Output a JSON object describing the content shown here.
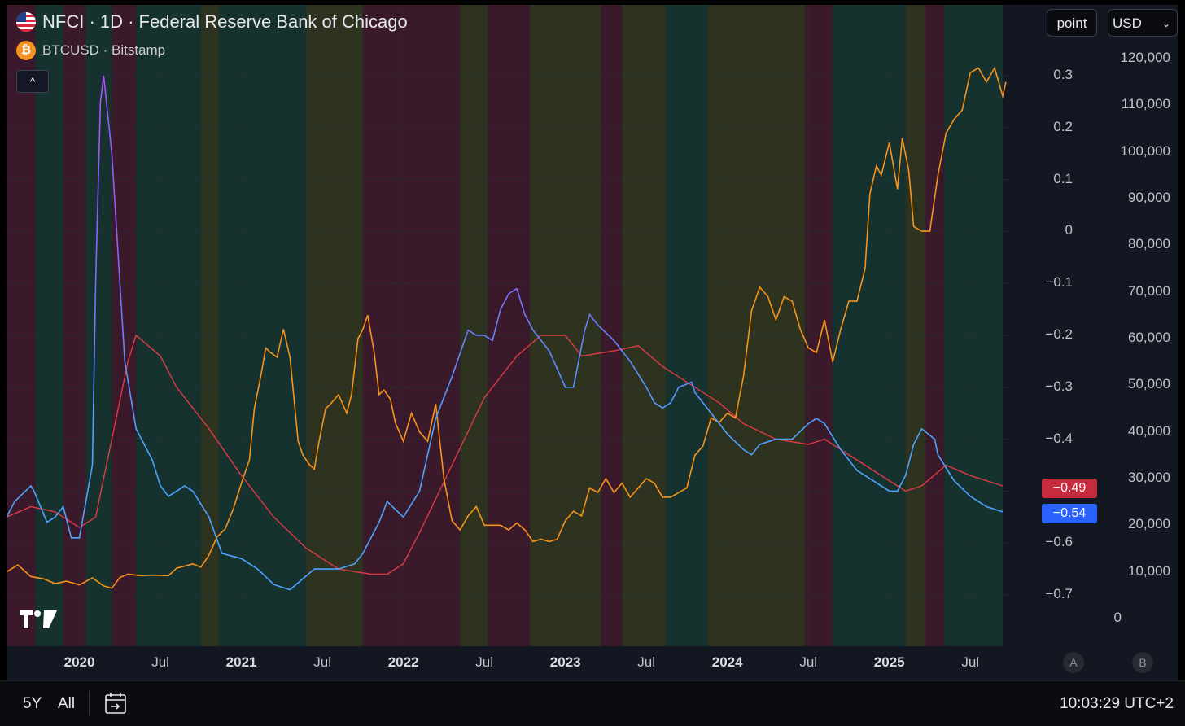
{
  "header": {
    "main_title": "NFCI · 1D · Federal Reserve Bank of Chicago",
    "sub_title": "BTCUSD · Bitstamp",
    "scale_button": "point",
    "currency_select": "USD",
    "collapse_label": "^"
  },
  "colors": {
    "nfci_line": "#4da3ff",
    "nfci_peak": "#b04dff",
    "ma_line": "#e03a47",
    "btc_line": "#f7931a",
    "band_red": "#3a1a2a",
    "band_green": "#15322e",
    "band_olive": "#2e3320",
    "badge_red": "#c52b3c",
    "badge_blue": "#2962ff"
  },
  "chart_data": {
    "type": "line",
    "title": "NFCI · 1D · Federal Reserve Bank of Chicago",
    "x_range": [
      2019.55,
      2025.75
    ],
    "nfci_axis": {
      "ticks": [
        "0.3",
        "0.2",
        "0.1",
        "0",
        "−0.1",
        "−0.2",
        "−0.3",
        "−0.4",
        "−0.5",
        "−0.6",
        "−0.7"
      ],
      "range": [
        -0.72,
        0.32
      ]
    },
    "btc_axis": {
      "ticks": [
        "120,000",
        "110,000",
        "100,000",
        "90,000",
        "80,000",
        "70,000",
        "60,000",
        "50,000",
        "40,000",
        "30,000",
        "20,000",
        "10,000",
        "0"
      ],
      "range": [
        0,
        120000
      ]
    },
    "x_ticks": [
      {
        "label": "2020",
        "x": 2020.0,
        "bold": true
      },
      {
        "label": "Jul",
        "x": 2020.5,
        "bold": false
      },
      {
        "label": "2021",
        "x": 2021.0,
        "bold": true
      },
      {
        "label": "Jul",
        "x": 2021.5,
        "bold": false
      },
      {
        "label": "2022",
        "x": 2022.0,
        "bold": true
      },
      {
        "label": "Jul",
        "x": 2022.5,
        "bold": false
      },
      {
        "label": "2023",
        "x": 2023.0,
        "bold": true
      },
      {
        "label": "Jul",
        "x": 2023.5,
        "bold": false
      },
      {
        "label": "2024",
        "x": 2024.0,
        "bold": true
      },
      {
        "label": "Jul",
        "x": 2024.5,
        "bold": false
      },
      {
        "label": "2025",
        "x": 2025.0,
        "bold": true
      },
      {
        "label": "Jul",
        "x": 2025.5,
        "bold": false
      }
    ],
    "series": [
      {
        "name": "NFCI",
        "axis": "left",
        "x": [
          2019.55,
          2019.6,
          2019.7,
          2019.72,
          2019.8,
          2019.85,
          2019.9,
          2019.95,
          2020.0,
          2020.08,
          2020.1,
          2020.13,
          2020.15,
          2020.2,
          2020.28,
          2020.35,
          2020.45,
          2020.5,
          2020.55,
          2020.6,
          2020.65,
          2020.7,
          2020.8,
          2020.88,
          2021.0,
          2021.05,
          2021.1,
          2021.2,
          2021.3,
          2021.45,
          2021.5,
          2021.6,
          2021.7,
          2021.75,
          2021.85,
          2021.9,
          2022.0,
          2022.1,
          2022.2,
          2022.3,
          2022.4,
          2022.45,
          2022.5,
          2022.55,
          2022.6,
          2022.65,
          2022.7,
          2022.75,
          2022.8,
          2022.9,
          2023.0,
          2023.05,
          2023.12,
          2023.15,
          2023.2,
          2023.3,
          2023.4,
          2023.5,
          2023.55,
          2023.6,
          2023.65,
          2023.7,
          2023.78,
          2023.8,
          2023.9,
          2024.0,
          2024.1,
          2024.15,
          2024.2,
          2024.3,
          2024.4,
          2024.5,
          2024.55,
          2024.6,
          2024.7,
          2024.8,
          2024.9,
          2025.0,
          2025.05,
          2025.1,
          2025.15,
          2025.2,
          2025.28,
          2025.3,
          2025.4,
          2025.5,
          2025.6,
          2025.7
        ],
        "values": [
          -0.55,
          -0.52,
          -0.49,
          -0.5,
          -0.56,
          -0.55,
          -0.53,
          -0.59,
          -0.59,
          -0.45,
          -0.1,
          0.25,
          0.3,
          0.15,
          -0.25,
          -0.38,
          -0.44,
          -0.49,
          -0.51,
          -0.5,
          -0.49,
          -0.5,
          -0.55,
          -0.62,
          -0.63,
          -0.64,
          -0.65,
          -0.68,
          -0.69,
          -0.65,
          -0.65,
          -0.65,
          -0.64,
          -0.62,
          -0.56,
          -0.52,
          -0.55,
          -0.5,
          -0.36,
          -0.28,
          -0.19,
          -0.2,
          -0.2,
          -0.21,
          -0.15,
          -0.12,
          -0.11,
          -0.16,
          -0.19,
          -0.23,
          -0.3,
          -0.3,
          -0.19,
          -0.16,
          -0.18,
          -0.21,
          -0.25,
          -0.3,
          -0.33,
          -0.34,
          -0.33,
          -0.3,
          -0.29,
          -0.31,
          -0.35,
          -0.39,
          -0.42,
          -0.43,
          -0.41,
          -0.4,
          -0.4,
          -0.37,
          -0.36,
          -0.37,
          -0.42,
          -0.46,
          -0.48,
          -0.5,
          -0.5,
          -0.47,
          -0.41,
          -0.38,
          -0.4,
          -0.43,
          -0.48,
          -0.51,
          -0.53,
          -0.54
        ]
      },
      {
        "name": "NFCI moving average",
        "axis": "left",
        "x": [
          2019.55,
          2019.7,
          2019.85,
          2020.0,
          2020.1,
          2020.2,
          2020.3,
          2020.35,
          2020.5,
          2020.6,
          2020.8,
          2021.0,
          2021.2,
          2021.4,
          2021.6,
          2021.8,
          2021.9,
          2022.0,
          2022.1,
          2022.3,
          2022.5,
          2022.7,
          2022.85,
          2023.0,
          2023.1,
          2023.3,
          2023.45,
          2023.6,
          2023.8,
          2023.95,
          2024.1,
          2024.3,
          2024.5,
          2024.6,
          2024.8,
          2025.0,
          2025.1,
          2025.2,
          2025.35,
          2025.5,
          2025.7
        ],
        "values": [
          -0.55,
          -0.53,
          -0.54,
          -0.57,
          -0.55,
          -0.4,
          -0.25,
          -0.2,
          -0.24,
          -0.3,
          -0.38,
          -0.47,
          -0.55,
          -0.61,
          -0.65,
          -0.66,
          -0.66,
          -0.64,
          -0.58,
          -0.45,
          -0.32,
          -0.24,
          -0.2,
          -0.2,
          -0.24,
          -0.23,
          -0.22,
          -0.26,
          -0.3,
          -0.33,
          -0.37,
          -0.4,
          -0.41,
          -0.4,
          -0.44,
          -0.48,
          -0.5,
          -0.49,
          -0.45,
          -0.47,
          -0.49
        ]
      },
      {
        "name": "BTCUSD",
        "axis": "right",
        "x": [
          2019.55,
          2019.62,
          2019.7,
          2019.78,
          2019.85,
          2019.92,
          2020.0,
          2020.08,
          2020.15,
          2020.2,
          2020.25,
          2020.3,
          2020.38,
          2020.45,
          2020.55,
          2020.6,
          2020.7,
          2020.75,
          2020.8,
          2020.85,
          2020.9,
          2020.95,
          2021.0,
          2021.05,
          2021.08,
          2021.12,
          2021.15,
          2021.18,
          2021.22,
          2021.26,
          2021.3,
          2021.35,
          2021.38,
          2021.42,
          2021.45,
          2021.48,
          2021.52,
          2021.55,
          2021.6,
          2021.65,
          2021.68,
          2021.72,
          2021.75,
          2021.78,
          2021.82,
          2021.85,
          2021.88,
          2021.92,
          2021.95,
          2022.0,
          2022.05,
          2022.1,
          2022.15,
          2022.2,
          2022.25,
          2022.3,
          2022.35,
          2022.4,
          2022.45,
          2022.5,
          2022.55,
          2022.6,
          2022.65,
          2022.7,
          2022.75,
          2022.8,
          2022.85,
          2022.9,
          2022.95,
          2023.0,
          2023.05,
          2023.1,
          2023.15,
          2023.2,
          2023.25,
          2023.3,
          2023.35,
          2023.4,
          2023.45,
          2023.5,
          2023.55,
          2023.6,
          2023.65,
          2023.7,
          2023.75,
          2023.8,
          2023.85,
          2023.9,
          2023.95,
          2024.0,
          2024.05,
          2024.1,
          2024.15,
          2024.2,
          2024.25,
          2024.3,
          2024.35,
          2024.4,
          2024.45,
          2024.5,
          2024.55,
          2024.6,
          2024.65,
          2024.7,
          2024.75,
          2024.8,
          2024.85,
          2024.88,
          2024.92,
          2024.95,
          2025.0,
          2025.05,
          2025.08,
          2025.12,
          2025.15,
          2025.2,
          2025.25,
          2025.3,
          2025.35,
          2025.4,
          2025.45,
          2025.5,
          2025.55,
          2025.6,
          2025.65,
          2025.7,
          2025.72
        ],
        "values": [
          10000,
          11500,
          9000,
          8500,
          7500,
          8000,
          7200,
          8700,
          7000,
          6500,
          8800,
          9500,
          9200,
          9300,
          9200,
          10800,
          11700,
          11000,
          13600,
          17500,
          19200,
          23500,
          29000,
          34000,
          45000,
          52000,
          58000,
          57000,
          56000,
          62000,
          56000,
          38000,
          35000,
          33000,
          32000,
          38000,
          45000,
          46000,
          48000,
          44000,
          48000,
          60000,
          62000,
          65000,
          57000,
          48000,
          49000,
          47000,
          42000,
          38000,
          44000,
          40000,
          38000,
          46000,
          30000,
          21000,
          19000,
          22000,
          24000,
          20000,
          20000,
          20000,
          19000,
          20500,
          19000,
          16500,
          17000,
          16500,
          17000,
          21000,
          23000,
          22000,
          28000,
          27000,
          30000,
          27000,
          29000,
          26000,
          28000,
          30000,
          29000,
          26000,
          26000,
          27000,
          28000,
          35000,
          37000,
          43000,
          42000,
          44000,
          43000,
          52000,
          66000,
          71000,
          69000,
          64000,
          69000,
          68000,
          62000,
          58000,
          57000,
          64000,
          55000,
          62000,
          68000,
          68000,
          75000,
          91000,
          97000,
          95000,
          102000,
          92000,
          103000,
          96000,
          84000,
          83000,
          83000,
          95000,
          104000,
          107000,
          109000,
          117000,
          118000,
          115000,
          118000,
          112000,
          115000
        ]
      }
    ],
    "bands": [
      {
        "start": 2019.55,
        "end": 2019.73,
        "color": "red"
      },
      {
        "start": 2019.73,
        "end": 2019.9,
        "color": "green"
      },
      {
        "start": 2019.9,
        "end": 2020.04,
        "color": "red"
      },
      {
        "start": 2020.04,
        "end": 2020.2,
        "color": "green"
      },
      {
        "start": 2020.2,
        "end": 2020.35,
        "color": "red"
      },
      {
        "start": 2020.35,
        "end": 2020.75,
        "color": "green"
      },
      {
        "start": 2020.75,
        "end": 2020.86,
        "color": "olive"
      },
      {
        "start": 2020.86,
        "end": 2021.4,
        "color": "green"
      },
      {
        "start": 2021.4,
        "end": 2021.75,
        "color": "olive"
      },
      {
        "start": 2021.75,
        "end": 2021.93,
        "color": "red"
      },
      {
        "start": 2021.93,
        "end": 2022.35,
        "color": "red"
      },
      {
        "start": 2022.35,
        "end": 2022.52,
        "color": "olive"
      },
      {
        "start": 2022.52,
        "end": 2022.78,
        "color": "red"
      },
      {
        "start": 2022.78,
        "end": 2023.22,
        "color": "olive"
      },
      {
        "start": 2023.22,
        "end": 2023.35,
        "color": "red"
      },
      {
        "start": 2023.35,
        "end": 2023.62,
        "color": "olive"
      },
      {
        "start": 2023.62,
        "end": 2023.88,
        "color": "green"
      },
      {
        "start": 2023.88,
        "end": 2024.2,
        "color": "olive"
      },
      {
        "start": 2024.2,
        "end": 2024.48,
        "color": "olive"
      },
      {
        "start": 2024.48,
        "end": 2024.65,
        "color": "red"
      },
      {
        "start": 2024.65,
        "end": 2025.1,
        "color": "green"
      },
      {
        "start": 2025.1,
        "end": 2025.22,
        "color": "olive"
      },
      {
        "start": 2025.22,
        "end": 2025.34,
        "color": "red"
      },
      {
        "start": 2025.34,
        "end": 2025.7,
        "color": "green"
      }
    ],
    "last_values": {
      "ma": "−0.49",
      "nfci": "−0.54"
    }
  },
  "pane_buttons": {
    "a": "A",
    "b": "B"
  },
  "footer": {
    "range_5y": "5Y",
    "range_all": "All",
    "clock": "10:03:29 UTC+2"
  }
}
